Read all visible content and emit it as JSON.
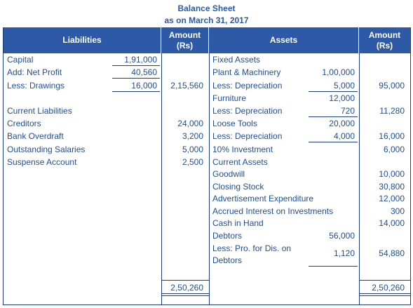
{
  "header": {
    "title": "Balance Sheet",
    "subtitle": "as on March 31, 2017"
  },
  "columns": {
    "liabilities": "Liabilities",
    "amount_left_1": "Amount",
    "amount_left_2": "(Rs)",
    "assets": "Assets",
    "amount_right_1": "Amount",
    "amount_right_2": "(Rs)"
  },
  "liabilities": {
    "capital": "Capital",
    "capital_val": "1,91,000",
    "net_profit": "Add: Net Profit",
    "net_profit_val": "40,560",
    "drawings": "Less: Drawings",
    "drawings_val": "16,000",
    "capital_total": "2,15,560",
    "current_liabilities": "Current Liabilities",
    "creditors": "Creditors",
    "creditors_val": "24,000",
    "bank_overdraft": "Bank Overdraft",
    "bank_overdraft_val": "3,200",
    "outstanding_salaries": "Outstanding Salaries",
    "outstanding_salaries_val": "5,000",
    "suspense": "Suspense Account",
    "suspense_val": "2,500",
    "total": "2,50,260"
  },
  "assets": {
    "fixed_assets": "Fixed Assets",
    "plant": "Plant & Machinery",
    "plant_val": "1,00,000",
    "plant_dep": "Less: Depreciation",
    "plant_dep_val": "5,000",
    "plant_net": "95,000",
    "furniture": "Furniture",
    "furniture_val": "12,000",
    "furniture_dep": "Less: Depreciation",
    "furniture_dep_val": "720",
    "furniture_net": "11,280",
    "loose_tools": "Loose Tools",
    "loose_tools_val": "20,000",
    "loose_tools_dep": "Less: Depreciation",
    "loose_tools_dep_val": "4,000",
    "loose_tools_net": "16,000",
    "investment": "10% Investment",
    "investment_val": "6,000",
    "current_assets": "Current Assets",
    "goodwill": "Goodwill",
    "goodwill_val": "10,000",
    "closing_stock": "Closing Stock",
    "closing_stock_val": "30,800",
    "advertisement": "Advertisement Expenditure",
    "advertisement_val": "12,000",
    "accrued_interest": "Accrued Interest on Investments",
    "accrued_interest_val": "300",
    "cash": "Cash in Hand",
    "cash_val": "14,000",
    "debtors": "Debtors",
    "debtors_val": "56,000",
    "provision_1": "Less: Pro. for Dis. on",
    "provision_2": "Debtors",
    "provision_val": "1,120",
    "debtors_net": "54,880",
    "total": "2,50,260"
  }
}
